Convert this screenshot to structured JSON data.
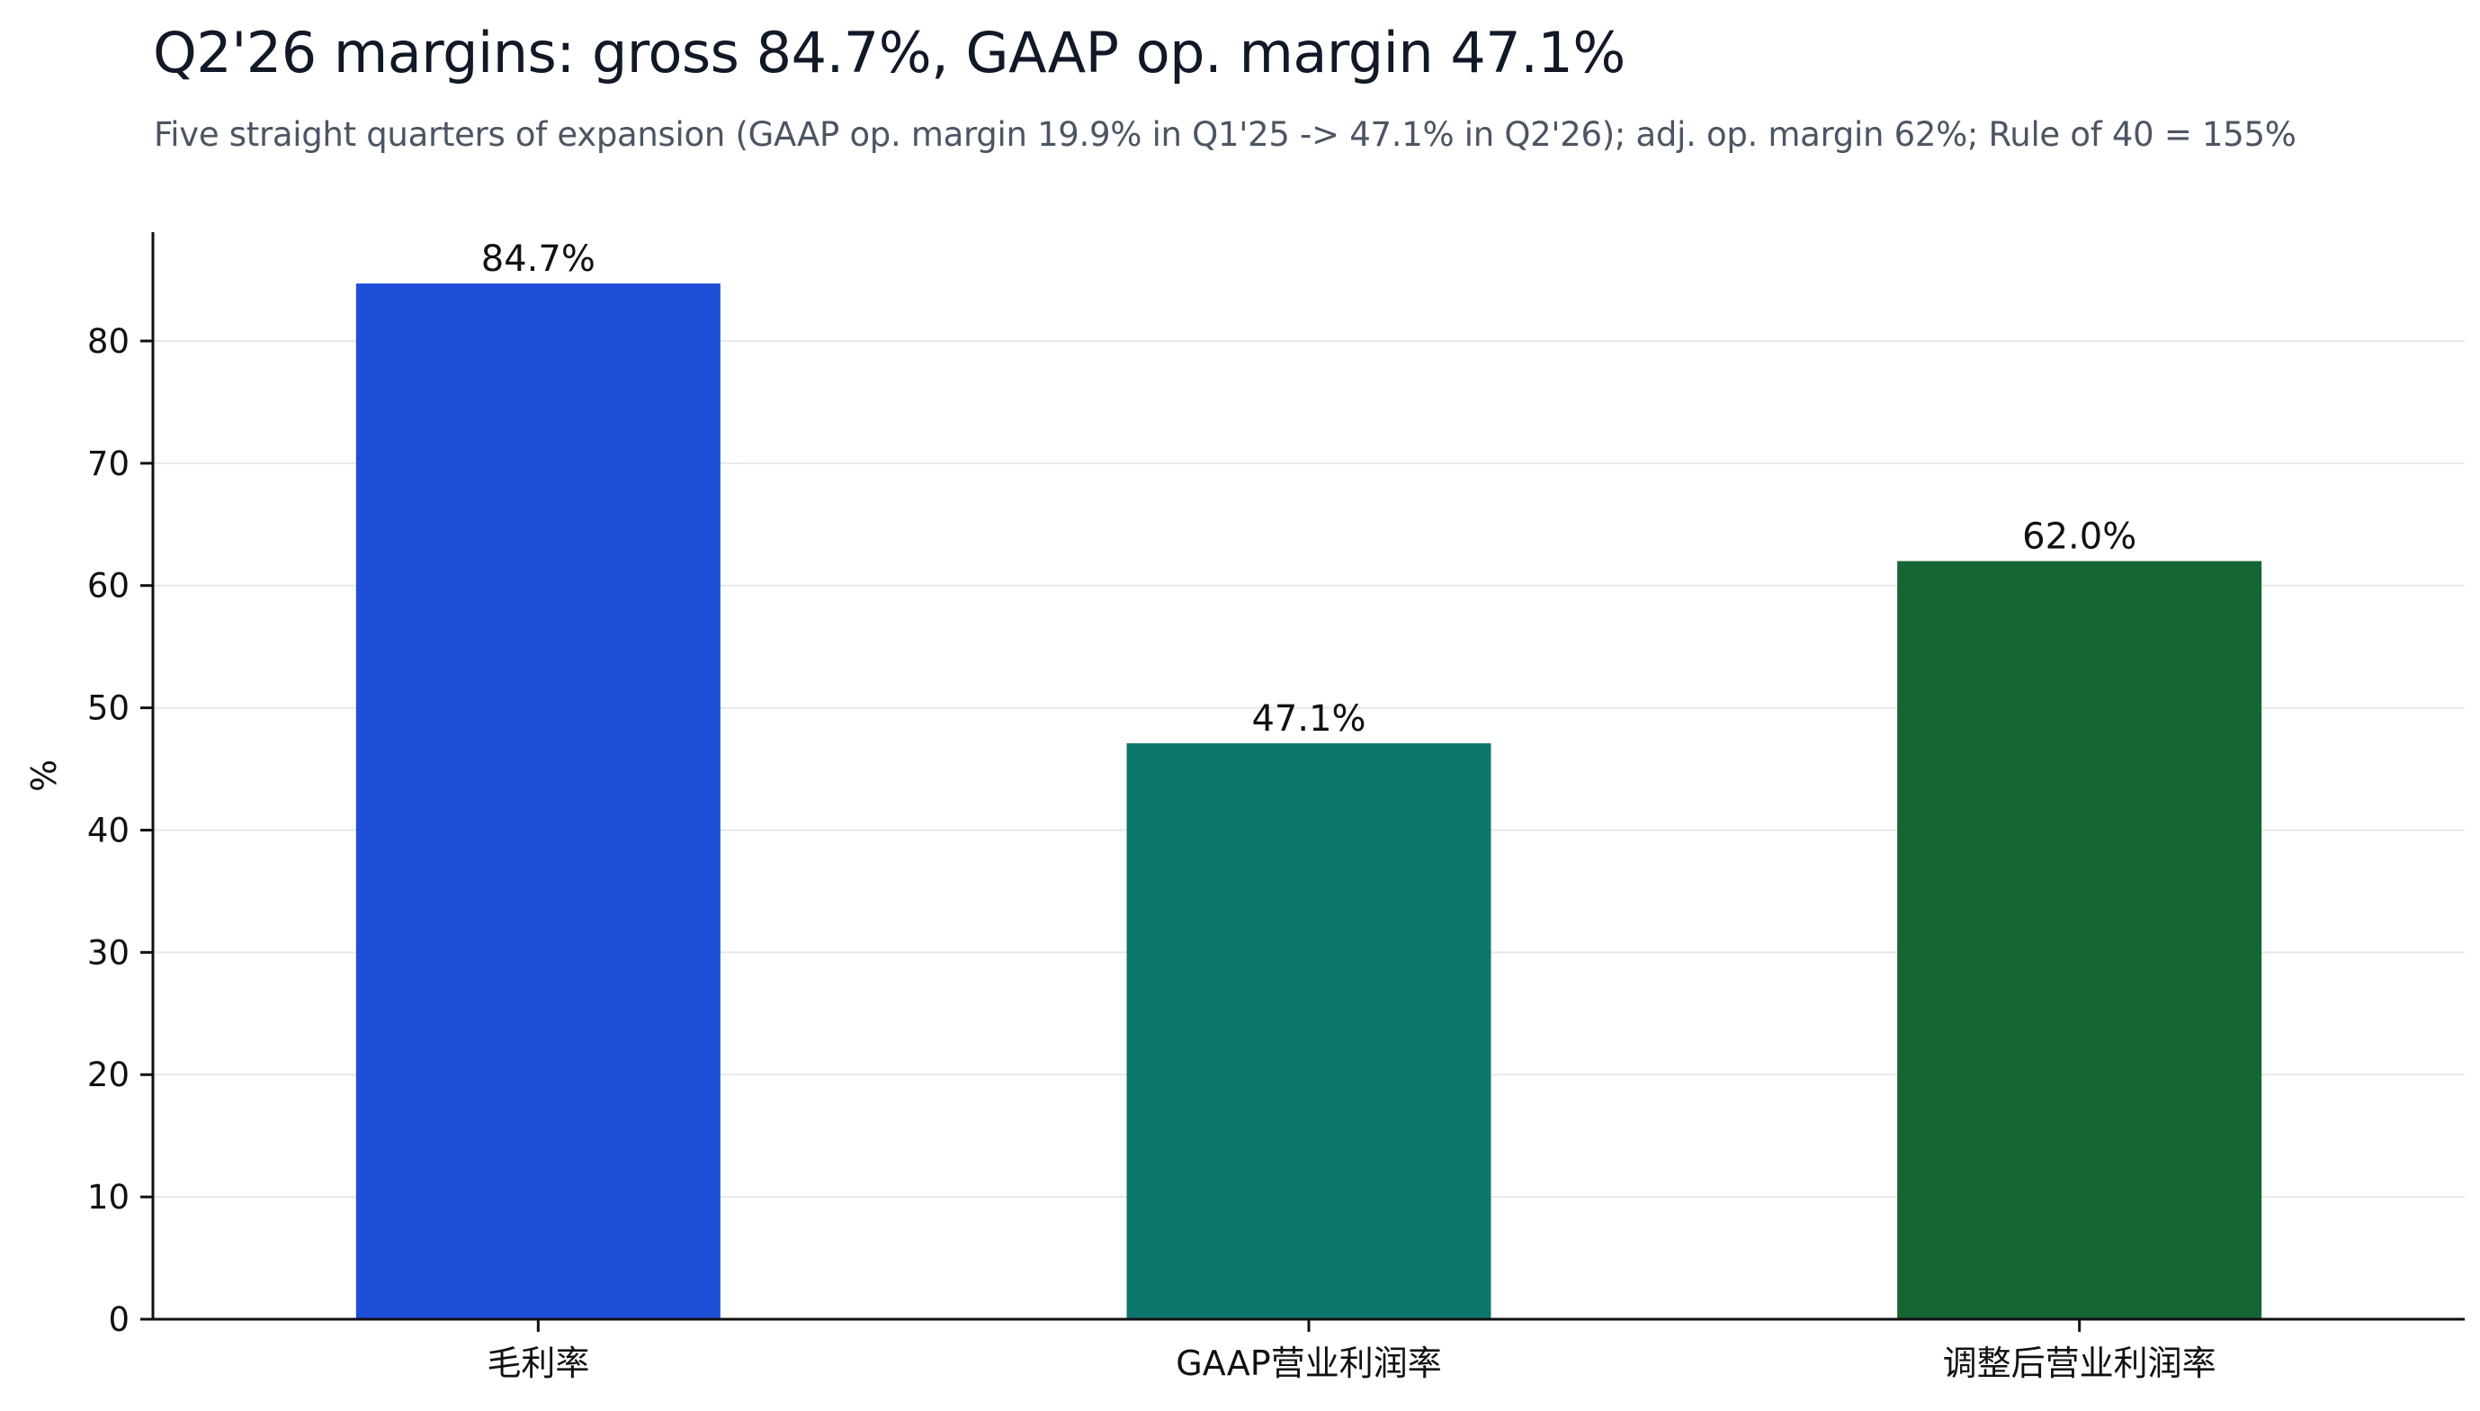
{
  "chart_data": {
    "type": "bar",
    "title": "Q2'26 margins: gross 84.7%, GAAP op. margin 47.1%",
    "subtitle": "Five straight quarters of expansion (GAAP op. margin 19.9% in Q1'25 -> 47.1% in Q2'26); adj. op. margin 62%; Rule of 40 = 155%",
    "xlabel": "",
    "ylabel": "%",
    "categories": [
      "毛利率",
      "GAAP营业利润率",
      "调整后营业利润率"
    ],
    "values": [
      84.7,
      47.1,
      62.0
    ],
    "value_labels": [
      "84.7%",
      "47.1%",
      "62.0%"
    ],
    "colors": [
      "#1d4ed8",
      "#0f766e",
      "#166534"
    ],
    "ylim": [
      0,
      88.9
    ],
    "yticks": [
      "0",
      "10",
      "20",
      "30",
      "40",
      "50",
      "60",
      "70",
      "80"
    ],
    "grid": true,
    "legend": "none"
  }
}
